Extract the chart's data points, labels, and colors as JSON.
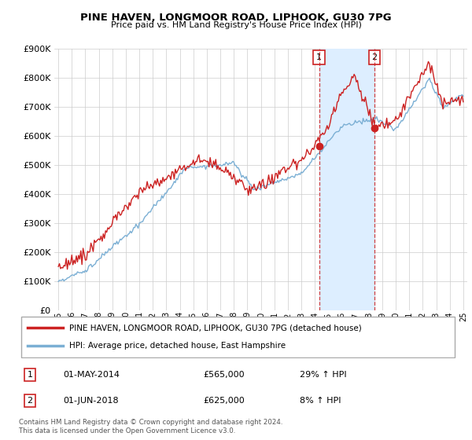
{
  "title": "PINE HAVEN, LONGMOOR ROAD, LIPHOOK, GU30 7PG",
  "subtitle": "Price paid vs. HM Land Registry's House Price Index (HPI)",
  "ylim": [
    0,
    900000
  ],
  "yticks": [
    0,
    100000,
    200000,
    300000,
    400000,
    500000,
    600000,
    700000,
    800000,
    900000
  ],
  "ytick_labels": [
    "£0",
    "£100K",
    "£200K",
    "£300K",
    "£400K",
    "£500K",
    "£600K",
    "£700K",
    "£800K",
    "£900K"
  ],
  "hpi_color": "#7bafd4",
  "price_color": "#cc2222",
  "fill_color": "#ddeeff",
  "background_color": "#ffffff",
  "grid_color": "#cccccc",
  "legend_label_price": "PINE HAVEN, LONGMOOR ROAD, LIPHOOK, GU30 7PG (detached house)",
  "legend_label_hpi": "HPI: Average price, detached house, East Hampshire",
  "t1_year": 2014.33,
  "t1_price": 565000,
  "t2_year": 2018.42,
  "t2_price": 625000,
  "footer": "Contains HM Land Registry data © Crown copyright and database right 2024.\nThis data is licensed under the Open Government Licence v3.0.",
  "xstart": 1995,
  "xend": 2025
}
